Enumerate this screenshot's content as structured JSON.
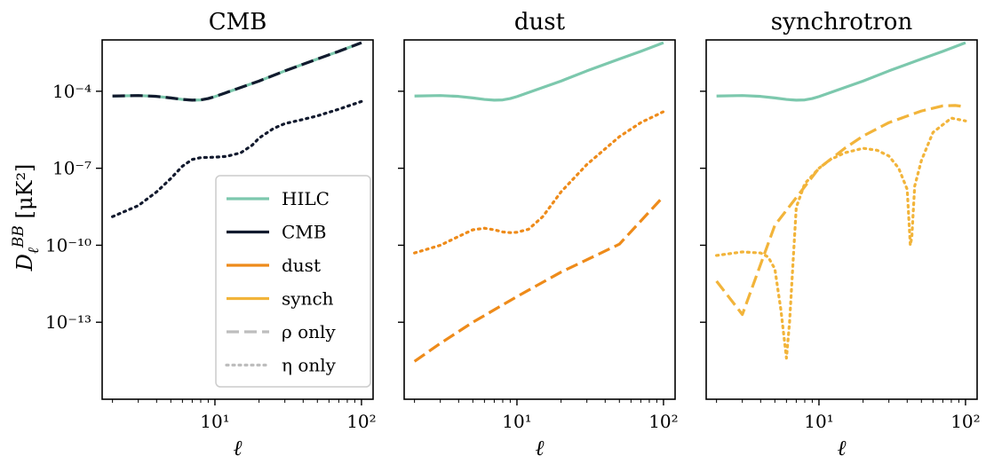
{
  "chart_data": {
    "type": "line",
    "ylabel": "D_ℓ^BB [μK²]",
    "x_scale": "log",
    "y_scale": "log",
    "xlim": [
      1.7,
      120
    ],
    "ylim": [
      1e-16,
      0.01
    ],
    "x_ticks": [
      {
        "value": 10,
        "label": "10¹"
      },
      {
        "value": 100,
        "label": "10²"
      }
    ],
    "y_ticks": [
      {
        "value": 0.0001,
        "label": "10⁻⁴"
      },
      {
        "value": 1e-07,
        "label": "10⁻⁷"
      },
      {
        "value": 1e-10,
        "label": "10⁻¹⁰"
      },
      {
        "value": 1e-13,
        "label": "10⁻¹³"
      }
    ],
    "colors": {
      "HILC": "#7cc8ad",
      "CMB": "#121a2e",
      "dust": "#ee8b1a",
      "synch": "#f2b43a",
      "legend_gray": "#bdbdbd"
    },
    "legend": [
      {
        "label": "HILC",
        "color": "#7cc8ad",
        "style": "solid"
      },
      {
        "label": "CMB",
        "color": "#121a2e",
        "style": "solid"
      },
      {
        "label": "dust",
        "color": "#ee8b1a",
        "style": "solid"
      },
      {
        "label": "synch",
        "color": "#f2b43a",
        "style": "solid"
      },
      {
        "label": "ρ only",
        "color": "#bdbdbd",
        "style": "dashed"
      },
      {
        "label": "η only",
        "color": "#bdbdbd",
        "style": "dotted"
      }
    ],
    "legend_position": "lower-right of first panel",
    "panels": [
      {
        "title": "CMB",
        "xlabel": "ℓ",
        "series": [
          {
            "name": "HILC",
            "color": "#7cc8ad",
            "style": "solid",
            "x": [
              2,
              3,
              4,
              5,
              6,
              7,
              8,
              9,
              10,
              15,
              20,
              30,
              50,
              70,
              100
            ],
            "y": [
              6.5e-05,
              6.8e-05,
              6.3e-05,
              5.5e-05,
              4.8e-05,
              4.5e-05,
              4.6e-05,
              5.2e-05,
              6.2e-05,
              0.00014,
              0.00025,
              0.00062,
              0.0018,
              0.0036,
              0.0078
            ]
          },
          {
            "name": "CMB",
            "color": "#121a2e",
            "style": "dashed",
            "x": [
              2,
              3,
              4,
              5,
              6,
              7,
              8,
              9,
              10,
              15,
              20,
              30,
              50,
              70,
              100
            ],
            "y": [
              6.5e-05,
              6.8e-05,
              6.3e-05,
              5.5e-05,
              4.8e-05,
              4.5e-05,
              4.6e-05,
              5.2e-05,
              6.2e-05,
              0.00014,
              0.00025,
              0.00062,
              0.0018,
              0.0036,
              0.0078
            ]
          },
          {
            "name": "CMB",
            "color": "#121a2e",
            "style": "dotted",
            "x": [
              2,
              3,
              4,
              5,
              6,
              7,
              8,
              10,
              12,
              15,
              18,
              20,
              25,
              30,
              40,
              50,
              70,
              100
            ],
            "y": [
              1.3e-09,
              3.5e-09,
              1.2e-08,
              4e-08,
              1.2e-07,
              2.2e-07,
              2.6e-07,
              2.7e-07,
              2.9e-07,
              4e-07,
              8e-07,
              1.5e-06,
              3.5e-06,
              5.5e-06,
              8e-06,
              1.1e-05,
              2e-05,
              4e-05
            ]
          }
        ]
      },
      {
        "title": "dust",
        "xlabel": "ℓ",
        "series": [
          {
            "name": "HILC",
            "color": "#7cc8ad",
            "style": "solid",
            "x": [
              2,
              3,
              4,
              5,
              6,
              7,
              8,
              9,
              10,
              15,
              20,
              30,
              50,
              70,
              100
            ],
            "y": [
              6.5e-05,
              6.8e-05,
              6.3e-05,
              5.5e-05,
              4.8e-05,
              4.5e-05,
              4.6e-05,
              5.2e-05,
              6.2e-05,
              0.00014,
              0.00025,
              0.00062,
              0.0018,
              0.0036,
              0.0078
            ]
          },
          {
            "name": "dust",
            "color": "#ee8b1a",
            "style": "dotted",
            "x": [
              2,
              3,
              4,
              5,
              6,
              7,
              8,
              9,
              10,
              12,
              15,
              20,
              30,
              50,
              70,
              100
            ],
            "y": [
              5e-11,
              1e-10,
              2.2e-10,
              4e-10,
              4.6e-10,
              4e-10,
              3.3e-10,
              3.1e-10,
              3.2e-10,
              4.2e-10,
              1.3e-09,
              1.2e-08,
              1.4e-07,
              1.7e-06,
              6e-06,
              1.6e-05
            ]
          },
          {
            "name": "dust",
            "color": "#ee8b1a",
            "style": "dashed",
            "x": [
              2,
              3,
              5,
              10,
              20,
              50,
              100
            ],
            "y": [
              3e-15,
              1.5e-14,
              1e-13,
              1e-12,
              9e-12,
              1.1e-10,
              8e-09
            ]
          }
        ]
      },
      {
        "title": "synchrotron",
        "xlabel": "ℓ",
        "series": [
          {
            "name": "HILC",
            "color": "#7cc8ad",
            "style": "solid",
            "x": [
              2,
              3,
              4,
              5,
              6,
              7,
              8,
              9,
              10,
              15,
              20,
              30,
              50,
              70,
              100
            ],
            "y": [
              6.5e-05,
              6.8e-05,
              6.3e-05,
              5.5e-05,
              4.8e-05,
              4.5e-05,
              4.6e-05,
              5.2e-05,
              6.2e-05,
              0.00014,
              0.00025,
              0.00062,
              0.0018,
              0.0036,
              0.0078
            ]
          },
          {
            "name": "synch",
            "color": "#f2b43a",
            "style": "dashed",
            "x": [
              2,
              3,
              5,
              10,
              15,
              20,
              30,
              50,
              70,
              85,
              100
            ],
            "y": [
              4e-12,
              2e-13,
              6e-10,
              1e-07,
              6e-07,
              1.8e-06,
              6e-06,
              1.7e-05,
              2.7e-05,
              2.8e-05,
              2.5e-05
            ]
          },
          {
            "name": "synch",
            "color": "#f2b43a",
            "style": "dotted",
            "x": [
              2,
              3,
              4,
              4.5,
              5,
              5.5,
              6,
              6.3,
              7,
              8,
              10,
              12,
              15,
              20,
              25,
              30,
              35,
              40,
              42,
              43,
              45,
              50,
              60,
              80,
              100
            ],
            "y": [
              4e-11,
              5.5e-11,
              5e-11,
              3.5e-11,
              1.2e-11,
              3e-13,
              4e-15,
              1e-13,
              3e-09,
              2.5e-08,
              1e-07,
              2.2e-07,
              4e-07,
              6e-07,
              5e-07,
              3e-07,
              1e-07,
              1.5e-08,
              1e-10,
              2e-10,
              2e-08,
              2e-07,
              2.5e-06,
              9e-06,
              7e-06
            ]
          }
        ]
      }
    ]
  }
}
